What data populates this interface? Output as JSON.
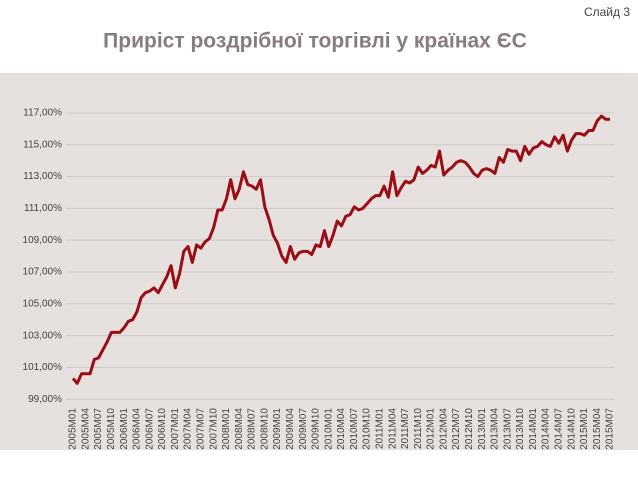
{
  "slide_label": "Слайд 3",
  "chart_data": {
    "type": "line",
    "title": "Приріст роздрібної торгівлі у країнах ЄС",
    "categories": [
      "2005M01",
      null,
      null,
      "2005M04",
      null,
      null,
      "2005M07",
      null,
      null,
      "2005M10",
      null,
      null,
      "2006M01",
      null,
      null,
      "2006M04",
      null,
      null,
      "2006M07",
      null,
      null,
      "2006M10",
      null,
      null,
      "2007M01",
      null,
      null,
      "2007M04",
      null,
      null,
      "2007M07",
      null,
      null,
      "2007M10",
      null,
      null,
      "2008M01",
      null,
      null,
      "2008M04",
      null,
      null,
      "2008M07",
      null,
      null,
      "2008M10",
      null,
      null,
      "2009M01",
      null,
      null,
      "2009M04",
      null,
      null,
      "2009M07",
      null,
      null,
      "2009M10",
      null,
      null,
      "2010M01",
      null,
      null,
      "2010M04",
      null,
      null,
      "2010M07",
      null,
      null,
      "2010M10",
      null,
      null,
      "2011M01",
      null,
      null,
      "2011M04",
      null,
      null,
      "2011M07",
      null,
      null,
      "2011M10",
      null,
      null,
      "2012M01",
      null,
      null,
      "2012M04",
      null,
      null,
      "2012M07",
      null,
      null,
      "2012M10",
      null,
      null,
      "2013M01",
      null,
      null,
      "2013M04",
      null,
      null,
      "2013M07",
      null,
      null,
      "2013M10",
      null,
      null,
      "2014M01",
      null,
      null,
      "2014M04",
      null,
      null,
      "2014M07",
      null,
      null,
      "2014M10",
      null,
      null,
      "2015M01",
      null,
      null,
      "2015M04",
      null,
      null,
      "2015M07"
    ],
    "values": [
      100.3,
      100.0,
      100.6,
      100.6,
      100.6,
      101.5,
      101.6,
      102.1,
      102.6,
      103.2,
      103.2,
      103.2,
      103.5,
      103.9,
      104.0,
      104.5,
      105.4,
      105.7,
      105.8,
      106.0,
      105.7,
      106.2,
      106.7,
      107.4,
      106.0,
      106.9,
      108.3,
      108.6,
      107.6,
      108.7,
      108.5,
      108.9,
      109.1,
      109.8,
      110.9,
      110.9,
      111.6,
      112.8,
      111.6,
      112.2,
      113.3,
      112.5,
      112.4,
      112.2,
      112.8,
      111.1,
      110.3,
      109.3,
      108.8,
      108.0,
      107.6,
      108.6,
      107.8,
      108.2,
      108.3,
      108.3,
      108.1,
      108.7,
      108.6,
      109.6,
      108.6,
      109.3,
      110.2,
      109.9,
      110.5,
      110.6,
      111.1,
      110.9,
      111.0,
      111.3,
      111.6,
      111.8,
      111.8,
      112.4,
      111.7,
      113.3,
      111.8,
      112.3,
      112.7,
      112.6,
      112.8,
      113.6,
      113.2,
      113.4,
      113.7,
      113.6,
      114.6,
      113.1,
      113.4,
      113.6,
      113.9,
      114.0,
      113.9,
      113.6,
      113.2,
      113.0,
      113.4,
      113.5,
      113.4,
      113.2,
      114.2,
      113.9,
      114.7,
      114.6,
      114.6,
      114.0,
      114.9,
      114.4,
      114.8,
      114.9,
      115.2,
      115.0,
      114.9,
      115.5,
      115.1,
      115.6,
      114.6,
      115.3,
      115.7,
      115.7,
      115.6,
      115.9,
      115.9,
      116.5,
      116.8,
      116.6,
      116.6
    ],
    "color": "#9b0d14",
    "ylim": [
      98.7,
      117.5
    ],
    "yticks": [
      {
        "value": 99,
        "label": "99,00%"
      },
      {
        "value": 101,
        "label": "101,00%"
      },
      {
        "value": 103,
        "label": "103,00%"
      },
      {
        "value": 105,
        "label": "105,00%"
      },
      {
        "value": 107,
        "label": "107,00%"
      },
      {
        "value": 109,
        "label": "109,00%"
      },
      {
        "value": 111,
        "label": "111,00%"
      },
      {
        "value": 113,
        "label": "113,00%"
      },
      {
        "value": 115,
        "label": "115,00%"
      },
      {
        "value": 117,
        "label": "117,00%"
      }
    ],
    "grid": true
  }
}
